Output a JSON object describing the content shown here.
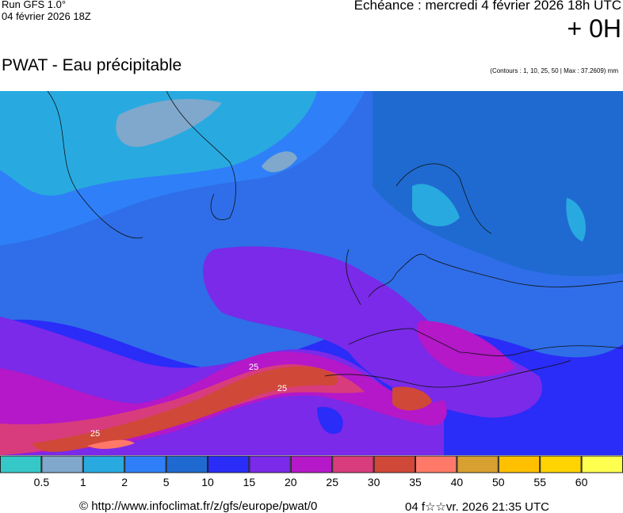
{
  "header": {
    "run": "Run GFS 1.0°",
    "date": "04 février 2026 18Z",
    "echeance": "Echéance : mercredi 4 février 2026 18h UTC",
    "offset": "+ 0H"
  },
  "title": "PWAT - Eau précipitable",
  "contours_note": "(Contours : 1, 10, 25, 50 | Max : 37.2609) mm",
  "map": {
    "contour_labels": [
      "25",
      "25",
      "25"
    ]
  },
  "legend": {
    "colors": [
      "#36c8c8",
      "#80a8cc",
      "#28aae0",
      "#2f80f8",
      "#1f6ad0",
      "#2a2cf8",
      "#7a2ae8",
      "#b418c8",
      "#d83c7c",
      "#d04838",
      "#ff7868",
      "#d8a030",
      "#ffc000",
      "#ffd400",
      "#ffff50"
    ],
    "labels": [
      "0.5",
      "1",
      "2",
      "5",
      "10",
      "15",
      "20",
      "25",
      "30",
      "35",
      "40",
      "50",
      "55",
      "60"
    ]
  },
  "footer": {
    "url": "© http://www.infoclimat.fr/z/gfs/europe/pwat/0",
    "generated": "04 f☆☆vr. 2026 21:35 UTC"
  }
}
